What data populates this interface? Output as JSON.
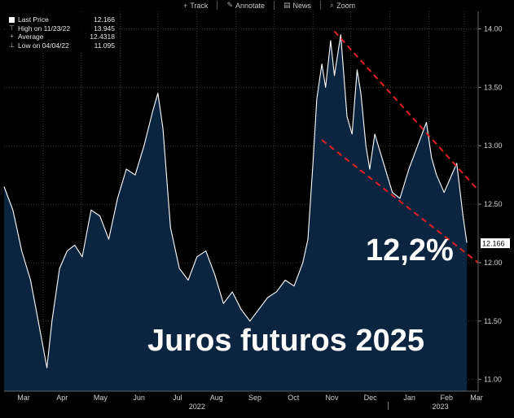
{
  "toolbar": {
    "items": [
      {
        "label": "Track",
        "icon": "crosshair-icon",
        "glyph": "+"
      },
      {
        "label": "Annotate",
        "icon": "pencil-icon",
        "glyph": "✎"
      },
      {
        "label": "News",
        "icon": "newspaper-icon",
        "glyph": "▤"
      },
      {
        "label": "Zoom",
        "icon": "magnifier-icon",
        "glyph": "⌕"
      }
    ]
  },
  "legend": {
    "rows": [
      {
        "label": "Last Price",
        "value": "12.166"
      },
      {
        "label": "High on 11/23/22",
        "value": "13.945"
      },
      {
        "label": "Average",
        "value": "12.4318"
      },
      {
        "label": "Low on 04/04/22",
        "value": "11.095"
      }
    ]
  },
  "last_price_tag": "12.166",
  "annotations": {
    "rate": "12,2%",
    "title": "Juros futuros 2025"
  },
  "colors": {
    "fill": "#0b2440",
    "line": "#ffffff",
    "trend": "#e02020",
    "background": "#000000",
    "grid": "#3a3a3a"
  },
  "chart_data": {
    "type": "area",
    "y_ticks": [
      "11.00",
      "11.50",
      "12.00",
      "12.50",
      "13.00",
      "13.50",
      "14.00"
    ],
    "ylim": [
      10.9,
      14.15
    ],
    "x_tick_labels": [
      "Mar",
      "Apr",
      "May",
      "Jun",
      "Jul",
      "Aug",
      "Sep",
      "Oct",
      "Nov",
      "Dec",
      "Jan",
      "Feb",
      "Mar"
    ],
    "year_labels": [
      "2022",
      "2023"
    ],
    "grid": true,
    "x": [
      "2022-03-01",
      "2022-03-08",
      "2022-03-15",
      "2022-03-22",
      "2022-03-29",
      "2022-04-04",
      "2022-04-08",
      "2022-04-14",
      "2022-04-20",
      "2022-04-26",
      "2022-05-02",
      "2022-05-09",
      "2022-05-16",
      "2022-05-23",
      "2022-05-30",
      "2022-06-06",
      "2022-06-13",
      "2022-06-20",
      "2022-06-27",
      "2022-07-01",
      "2022-07-05",
      "2022-07-11",
      "2022-07-18",
      "2022-07-25",
      "2022-08-01",
      "2022-08-08",
      "2022-08-15",
      "2022-08-22",
      "2022-08-29",
      "2022-09-05",
      "2022-09-12",
      "2022-09-19",
      "2022-09-26",
      "2022-10-03",
      "2022-10-10",
      "2022-10-17",
      "2022-10-24",
      "2022-10-28",
      "2022-11-01",
      "2022-11-04",
      "2022-11-08",
      "2022-11-11",
      "2022-11-15",
      "2022-11-18",
      "2022-11-23",
      "2022-11-28",
      "2022-12-02",
      "2022-12-06",
      "2022-12-09",
      "2022-12-13",
      "2022-12-16",
      "2022-12-20",
      "2022-12-27",
      "2023-01-03",
      "2023-01-09",
      "2023-01-16",
      "2023-01-23",
      "2023-01-30",
      "2023-02-03",
      "2023-02-07",
      "2023-02-13",
      "2023-02-17",
      "2023-02-23",
      "2023-02-28",
      "2023-03-03"
    ],
    "series": [
      {
        "values": [
          12.65,
          12.45,
          12.1,
          11.85,
          11.45,
          11.1,
          11.5,
          11.95,
          12.1,
          12.15,
          12.05,
          12.45,
          12.4,
          12.2,
          12.55,
          12.8,
          12.75,
          13.0,
          13.3,
          13.45,
          13.15,
          12.3,
          11.95,
          11.85,
          12.05,
          12.1,
          11.9,
          11.65,
          11.75,
          11.6,
          11.5,
          11.6,
          11.7,
          11.75,
          11.85,
          11.8,
          12.0,
          12.2,
          12.85,
          13.4,
          13.7,
          13.5,
          13.9,
          13.6,
          13.95,
          13.25,
          13.1,
          13.65,
          13.45,
          13.0,
          12.8,
          13.1,
          12.85,
          12.6,
          12.55,
          12.8,
          13.0,
          13.2,
          12.9,
          12.75,
          12.6,
          12.7,
          12.85,
          12.4,
          12.17
        ]
      }
    ],
    "trendlines": [
      {
        "from": [
          "2022-11-18",
          13.98
        ],
        "to": [
          "2023-03-12",
          12.62
        ]
      },
      {
        "from": [
          "2022-11-08",
          13.05
        ],
        "to": [
          "2023-03-12",
          12.0
        ]
      }
    ]
  }
}
